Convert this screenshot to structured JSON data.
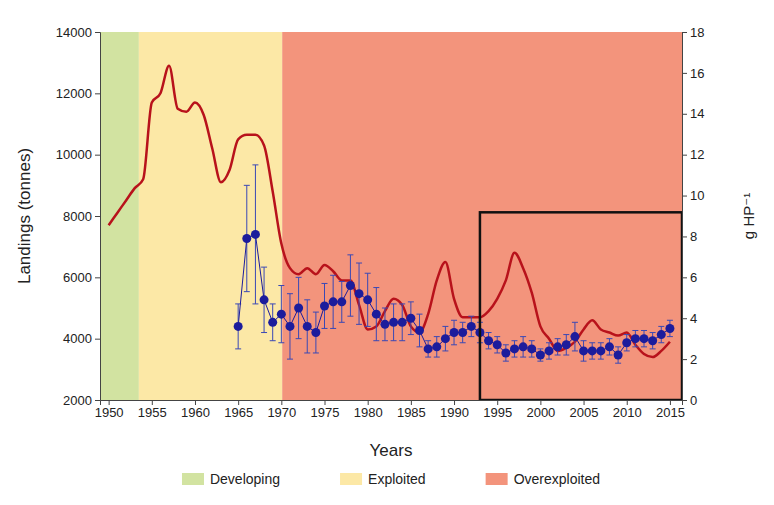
{
  "chart_data": {
    "type": "line",
    "x_label": "Years",
    "y_label": "Landings (tonnes)",
    "y2_label": "g HP⁻¹",
    "xlim": [
      1949,
      2016.4
    ],
    "xticks": [
      1950,
      1955,
      1960,
      1965,
      1970,
      1975,
      1980,
      1985,
      1990,
      1995,
      2000,
      2005,
      2010,
      2015
    ],
    "ylim": [
      2000,
      14000
    ],
    "yticks": [
      2000,
      4000,
      6000,
      8000,
      10000,
      12000,
      14000
    ],
    "y2lim": [
      0,
      18
    ],
    "y2ticks": [
      0,
      2,
      4,
      6,
      8,
      10,
      12,
      14,
      16,
      18
    ],
    "legend": "bottom",
    "bands": [
      {
        "name": "Developing",
        "color": "#d2e3a1",
        "x": [
          1949,
          1953.5
        ]
      },
      {
        "name": "Exploited",
        "color": "#fce8a6",
        "x": [
          1953.5,
          1970.1
        ]
      },
      {
        "name": "Overexploited",
        "color": "#f3947c",
        "x": [
          1970.1,
          2016.4
        ]
      }
    ],
    "highlight_box": {
      "x": [
        1993,
        2016.4
      ],
      "y": [
        2000,
        8120
      ]
    },
    "series": [
      {
        "type": "line",
        "color": "#b8121b",
        "x": [
          1950,
          1951,
          1952,
          1953,
          1954,
          1955,
          1956,
          1957,
          1958,
          1959,
          1960,
          1961,
          1962,
          1963,
          1964,
          1965,
          1966,
          1967,
          1968,
          1969,
          1970,
          1971,
          1972,
          1973,
          1974,
          1975,
          1976,
          1977,
          1978,
          1979,
          1980,
          1981,
          1982,
          1983,
          1984,
          1985,
          1986,
          1987,
          1988,
          1989,
          1990,
          1991,
          1992,
          1993,
          1994,
          1995,
          1996,
          1997,
          1998,
          1999,
          2000,
          2001,
          2002,
          2003,
          2004,
          2005,
          2006,
          2007,
          2008,
          2009,
          2010,
          2011,
          2012,
          2013,
          2014,
          2015
        ],
        "values": [
          7700,
          8100,
          8500,
          8900,
          9200,
          11700,
          12000,
          12900,
          11500,
          11400,
          11700,
          11300,
          10200,
          9100,
          9500,
          10500,
          10650,
          10650,
          10300,
          8800,
          7100,
          6300,
          6100,
          6300,
          6100,
          6400,
          6200,
          5900,
          5900,
          5100,
          4300,
          4400,
          4900,
          5300,
          5100,
          4400,
          4200,
          4800,
          5900,
          6500,
          5300,
          4700,
          4700,
          4700,
          4900,
          5300,
          5900,
          6800,
          6300,
          5500,
          4400,
          4000,
          3600,
          3700,
          3900,
          4300,
          4600,
          4300,
          4200,
          4100,
          4200,
          3800,
          3500,
          3400,
          3600,
          3900
        ]
      },
      {
        "type": "scatter",
        "marker": "circle",
        "color": "#1c1c9c",
        "axis": "y2",
        "x": [
          1965,
          1966,
          1967,
          1968,
          1969,
          1970,
          1971,
          1972,
          1973,
          1974,
          1975,
          1976,
          1977,
          1978,
          1979,
          1980,
          1981,
          1982,
          1983,
          1984,
          1985,
          1986,
          1987,
          1988,
          1989,
          1990,
          1991,
          1992,
          1993,
          1994,
          1995,
          1996,
          1997,
          1998,
          1999,
          2000,
          2001,
          2002,
          2003,
          2004,
          2005,
          2006,
          2007,
          2008,
          2009,
          2010,
          2011,
          2012,
          2013,
          2014,
          2015
        ],
        "values": [
          3.6,
          7.9,
          8.1,
          4.9,
          3.8,
          4.2,
          3.6,
          4.5,
          3.6,
          3.3,
          4.6,
          4.8,
          4.8,
          5.6,
          5.2,
          4.9,
          4.2,
          3.7,
          3.8,
          3.8,
          4.0,
          3.4,
          2.5,
          2.6,
          3.0,
          3.3,
          3.3,
          3.6,
          3.3,
          2.9,
          2.7,
          2.3,
          2.5,
          2.6,
          2.5,
          2.2,
          2.4,
          2.6,
          2.7,
          3.1,
          2.4,
          2.4,
          2.4,
          2.6,
          2.2,
          2.8,
          3.0,
          3.0,
          2.9,
          3.2,
          3.5
        ],
        "errors": [
          1.1,
          2.6,
          3.4,
          1.6,
          0.9,
          1.4,
          1.6,
          1.5,
          1.3,
          1.0,
          1.1,
          1.3,
          1.0,
          1.5,
          1.5,
          1.3,
          1.3,
          0.8,
          0.9,
          0.9,
          0.8,
          0.8,
          0.4,
          0.5,
          0.6,
          0.6,
          0.5,
          0.5,
          0.5,
          0.4,
          0.4,
          0.4,
          0.4,
          0.5,
          0.4,
          0.3,
          0.4,
          0.4,
          0.5,
          0.7,
          0.5,
          0.4,
          0.4,
          0.4,
          0.4,
          0.4,
          0.4,
          0.4,
          0.4,
          0.4,
          0.4
        ]
      }
    ]
  }
}
